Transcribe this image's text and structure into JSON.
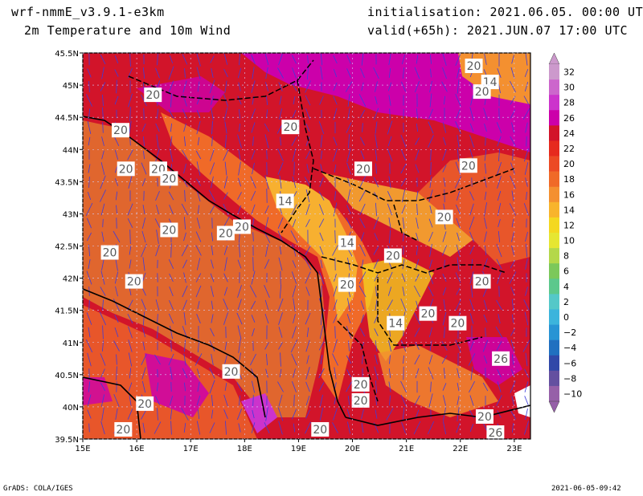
{
  "header": {
    "model": "wrf-nmmE_v3.9.1-e3km",
    "field": "2m Temperature and 10m Wind",
    "init": "initialisation: 2021.06.05. 00:00 UTC",
    "valid": "valid(+65h): 2021.JUN.07 17:00 UTC"
  },
  "footer": {
    "credit": "GrADS: COLA/IGES",
    "stamp": "2021-06-05-09:42"
  },
  "map": {
    "lon_labels": [
      "15E",
      "16E",
      "17E",
      "18E",
      "19E",
      "20E",
      "21E",
      "22E",
      "23E"
    ],
    "lat_labels": [
      "45.5N",
      "45N",
      "44.5N",
      "44N",
      "43.5N",
      "43N",
      "42.5N",
      "42N",
      "41.5N",
      "41N",
      "40.5N",
      "40N",
      "39.5N"
    ],
    "contour_labels": [
      {
        "lon": 16.3,
        "lat": 44.85,
        "text": "20"
      },
      {
        "lon": 15.7,
        "lat": 44.3,
        "text": "20"
      },
      {
        "lon": 18.85,
        "lat": 44.35,
        "text": "20"
      },
      {
        "lon": 15.8,
        "lat": 43.7,
        "text": "20"
      },
      {
        "lon": 16.4,
        "lat": 43.7,
        "text": "20"
      },
      {
        "lon": 16.6,
        "lat": 43.55,
        "text": "20"
      },
      {
        "lon": 20.2,
        "lat": 43.7,
        "text": "20"
      },
      {
        "lon": 22.15,
        "lat": 43.75,
        "text": "20"
      },
      {
        "lon": 18.75,
        "lat": 43.2,
        "text": "14"
      },
      {
        "lon": 16.6,
        "lat": 42.75,
        "text": "20"
      },
      {
        "lon": 17.65,
        "lat": 42.7,
        "text": "20"
      },
      {
        "lon": 17.95,
        "lat": 42.8,
        "text": "20"
      },
      {
        "lon": 21.7,
        "lat": 42.95,
        "text": "20"
      },
      {
        "lon": 15.5,
        "lat": 42.4,
        "text": "20"
      },
      {
        "lon": 19.9,
        "lat": 42.55,
        "text": "14"
      },
      {
        "lon": 20.75,
        "lat": 42.35,
        "text": "20"
      },
      {
        "lon": 15.95,
        "lat": 41.95,
        "text": "20"
      },
      {
        "lon": 19.9,
        "lat": 41.9,
        "text": "20"
      },
      {
        "lon": 22.4,
        "lat": 41.95,
        "text": "20"
      },
      {
        "lon": 20.8,
        "lat": 41.3,
        "text": "14"
      },
      {
        "lon": 21.4,
        "lat": 41.45,
        "text": "20"
      },
      {
        "lon": 21.95,
        "lat": 41.3,
        "text": "20"
      },
      {
        "lon": 22.75,
        "lat": 40.75,
        "text": "26"
      },
      {
        "lon": 17.75,
        "lat": 40.55,
        "text": "20"
      },
      {
        "lon": 20.15,
        "lat": 40.35,
        "text": "20"
      },
      {
        "lon": 20.15,
        "lat": 40.1,
        "text": "20"
      },
      {
        "lon": 16.15,
        "lat": 40.05,
        "text": "20"
      },
      {
        "lon": 15.75,
        "lat": 39.65,
        "text": "20"
      },
      {
        "lon": 19.4,
        "lat": 39.65,
        "text": "20"
      },
      {
        "lon": 22.45,
        "lat": 39.85,
        "text": "20"
      },
      {
        "lon": 22.65,
        "lat": 39.6,
        "text": "26"
      },
      {
        "lon": 22.25,
        "lat": 45.3,
        "text": "20"
      },
      {
        "lon": 22.55,
        "lat": 45.05,
        "text": "14"
      },
      {
        "lon": 22.4,
        "lat": 44.9,
        "text": "20"
      }
    ]
  },
  "colorbar": {
    "labels": [
      "32",
      "30",
      "28",
      "26",
      "24",
      "22",
      "20",
      "18",
      "16",
      "14",
      "12",
      "10",
      "8",
      "6",
      "4",
      "2",
      "0",
      "−2",
      "−4",
      "−6",
      "−8",
      "−10"
    ],
    "colors": [
      "#cc99cc",
      "#cc66cc",
      "#cc33cc",
      "#cc00aa",
      "#d2142a",
      "#e62a1e",
      "#ec4a24",
      "#f06a28",
      "#f49030",
      "#f8b42c",
      "#f4d820",
      "#e6e632",
      "#b4d84a",
      "#7cc85a",
      "#5cc88c",
      "#54c8c8",
      "#3cb4dc",
      "#2894d4",
      "#2070c0",
      "#3048a8",
      "#6450a0",
      "#9660a8"
    ]
  },
  "colors": {
    "magenta": "#cc00aa",
    "red": "#d2142a",
    "orange": "#e8562a",
    "sea": "#e0662e",
    "highland": "#f7b030",
    "wind": "#3c3cdc"
  }
}
